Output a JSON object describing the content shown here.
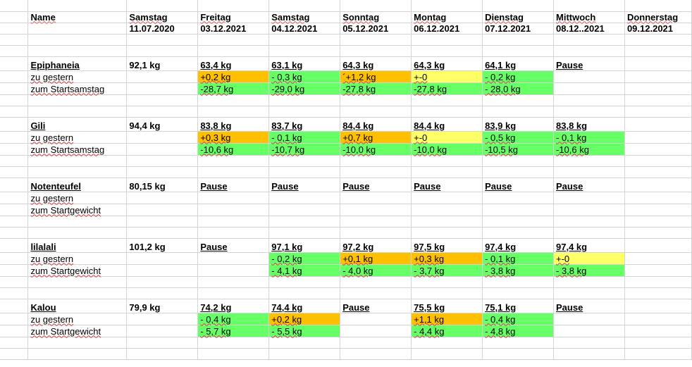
{
  "colors": {
    "green": "#66ff66",
    "orange": "#ffc000",
    "yellow": "#ffff66",
    "grid": "#d4d4d4"
  },
  "header": {
    "name_label": "Name",
    "days": [
      {
        "day": "Samstag",
        "date": "11.07.2020"
      },
      {
        "day": "Freitag",
        "date": "03.12.2021"
      },
      {
        "day": "Samstag",
        "date": "04.12.2021"
      },
      {
        "day": "Sonntag",
        "date": "05.12.2021"
      },
      {
        "day": "Montag",
        "date": "06.12.2021"
      },
      {
        "day": "Dienstag",
        "date": "07.12.2021"
      },
      {
        "day": "Mittwoch",
        "date": "08.12..2021"
      },
      {
        "day": "Donnerstag",
        "date": "09.12.2021"
      }
    ]
  },
  "people": [
    {
      "name": "Epiphaneia",
      "weights": [
        "92,1 kg",
        "63,4 kg",
        "63,1 kg",
        "64,3 kg",
        "64,3 kg",
        "64,1 kg",
        "Pause",
        ""
      ],
      "diff_label": "zu gestern",
      "diff": [
        "",
        "+0,2 kg",
        "- 0,3 kg",
        "´+1,2 kg",
        "+-0",
        "- 0,2 kg",
        "",
        ""
      ],
      "diff_colors": [
        "",
        "o",
        "g",
        "o",
        "y",
        "g",
        "",
        ""
      ],
      "total_label": "zum Startsamstag",
      "total": [
        "",
        "-28,7 kg",
        "-29,0 kg",
        "-27,8 kg",
        "-27,8 kg",
        "- 28,0 kg",
        "",
        ""
      ],
      "total_colors": [
        "",
        "g",
        "g",
        "g",
        "g",
        "g",
        "",
        ""
      ]
    },
    {
      "name": "Gili",
      "weights": [
        "94,4 kg",
        "83,8 kg",
        "83,7 kg",
        "84,4 kg",
        "84,4 kg",
        "83,9 kg",
        "83,8 kg",
        ""
      ],
      "diff_label": "zu gestern",
      "diff": [
        "",
        "+0,3 kg",
        "- 0,1 kg",
        "+0,7 kg",
        "+-0",
        "- 0,5 kg",
        "- 0,1 kg",
        ""
      ],
      "diff_colors": [
        "",
        "o",
        "g",
        "o",
        "y",
        "g",
        "g",
        ""
      ],
      "total_label": "zum Startsamstag",
      "total": [
        "",
        "-10,6 kg",
        "-10,7 kg",
        "-10,0 kg",
        "-10,0 kg",
        "-10,5 kg",
        "-10,6 kg",
        ""
      ],
      "total_colors": [
        "",
        "g",
        "g",
        "g",
        "g",
        "g",
        "g",
        ""
      ]
    },
    {
      "name": "Notenteufel",
      "weights": [
        "80,15 kg",
        "Pause",
        "Pause",
        "Pause",
        "Pause",
        "Pause",
        "Pause",
        ""
      ],
      "diff_label": "zu gestern",
      "diff": [
        "",
        "",
        "",
        "",
        "",
        "",
        "",
        ""
      ],
      "diff_colors": [
        "",
        "",
        "",
        "",
        "",
        "",
        "",
        ""
      ],
      "total_label": "zum Startgewicht",
      "total": [
        "",
        "",
        "",
        "",
        "",
        "",
        "",
        ""
      ],
      "total_colors": [
        "",
        "",
        "",
        "",
        "",
        "",
        "",
        ""
      ]
    },
    {
      "name": "lilalali",
      "weights": [
        "101,2 kg",
        "Pause",
        "97,1 kg",
        "97,2 kg",
        "97,5 kg",
        "97,4 kg",
        "97,4 kg",
        ""
      ],
      "diff_label": "zu gestern",
      "diff": [
        "",
        "",
        "- 0,2 kg",
        "+0,1 kg",
        "+0,3 kg",
        "- 0,1 kg",
        "+-0",
        ""
      ],
      "diff_colors": [
        "",
        "",
        "g",
        "o",
        "o",
        "g",
        "y",
        ""
      ],
      "total_label": "zum Startgewicht",
      "total": [
        "",
        "",
        "- 4,1 kg",
        "- 4,0 kg",
        "- 3,7 kg",
        "- 3,8 kg",
        "- 3,8 kg",
        ""
      ],
      "total_colors": [
        "",
        "",
        "g",
        "g",
        "g",
        "g",
        "g",
        ""
      ]
    },
    {
      "name": "Kalou",
      "weights": [
        "79,9 kg",
        "74,2 kg",
        "74,4 kg",
        "Pause",
        "75,5 kg",
        "75,1 kg",
        "Pause",
        ""
      ],
      "diff_label": "zu gestern",
      "diff": [
        "",
        "- 0,4 kg",
        "+0,2 kg",
        "",
        "+1,1 kg",
        "- 0,4 kg",
        "",
        ""
      ],
      "diff_colors": [
        "",
        "g",
        "o",
        "",
        "o",
        "g",
        "",
        ""
      ],
      "total_label": "zum Startgewicht",
      "total": [
        "",
        "- 5,7 kg",
        "- 5,5 kg",
        "",
        "- 4,4 kg",
        "- 4,8 kg",
        "",
        ""
      ],
      "total_colors": [
        "",
        "g",
        "g",
        "",
        "g",
        "g",
        "",
        ""
      ]
    }
  ]
}
